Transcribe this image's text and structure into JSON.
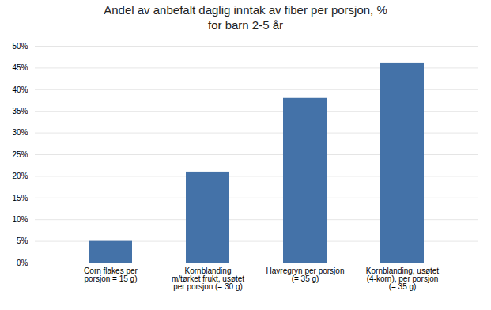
{
  "chart_data": {
    "type": "bar",
    "title": "Andel av anbefalt daglig inntak av fiber per porsjon, %\nfor barn 2-5 år",
    "categories": [
      "Corn flakes per\nporsjon = 15 g)",
      "Kornblanding\nm/tørket frukt, usøtet\nper porsjon (= 30 g)",
      "Havregryn per porsjon\n(= 35 g)",
      "Kornblanding, usøtet\n(4-korn), per porsjon\n(= 35 g)"
    ],
    "values": [
      5,
      21,
      38,
      46
    ],
    "color": "#4472a8",
    "ylim": [
      0,
      50
    ],
    "yticks": [
      {
        "value": 0,
        "label": "0%"
      },
      {
        "value": 5,
        "label": "5%"
      },
      {
        "value": 10,
        "label": "10%"
      },
      {
        "value": 15,
        "label": "15%"
      },
      {
        "value": 20,
        "label": "20%"
      },
      {
        "value": 25,
        "label": "25%"
      },
      {
        "value": 30,
        "label": "30%"
      },
      {
        "value": 35,
        "label": "35%"
      },
      {
        "value": 40,
        "label": "40%"
      },
      {
        "value": 45,
        "label": "45%"
      },
      {
        "value": 50,
        "label": "50%"
      }
    ],
    "grid": true
  }
}
